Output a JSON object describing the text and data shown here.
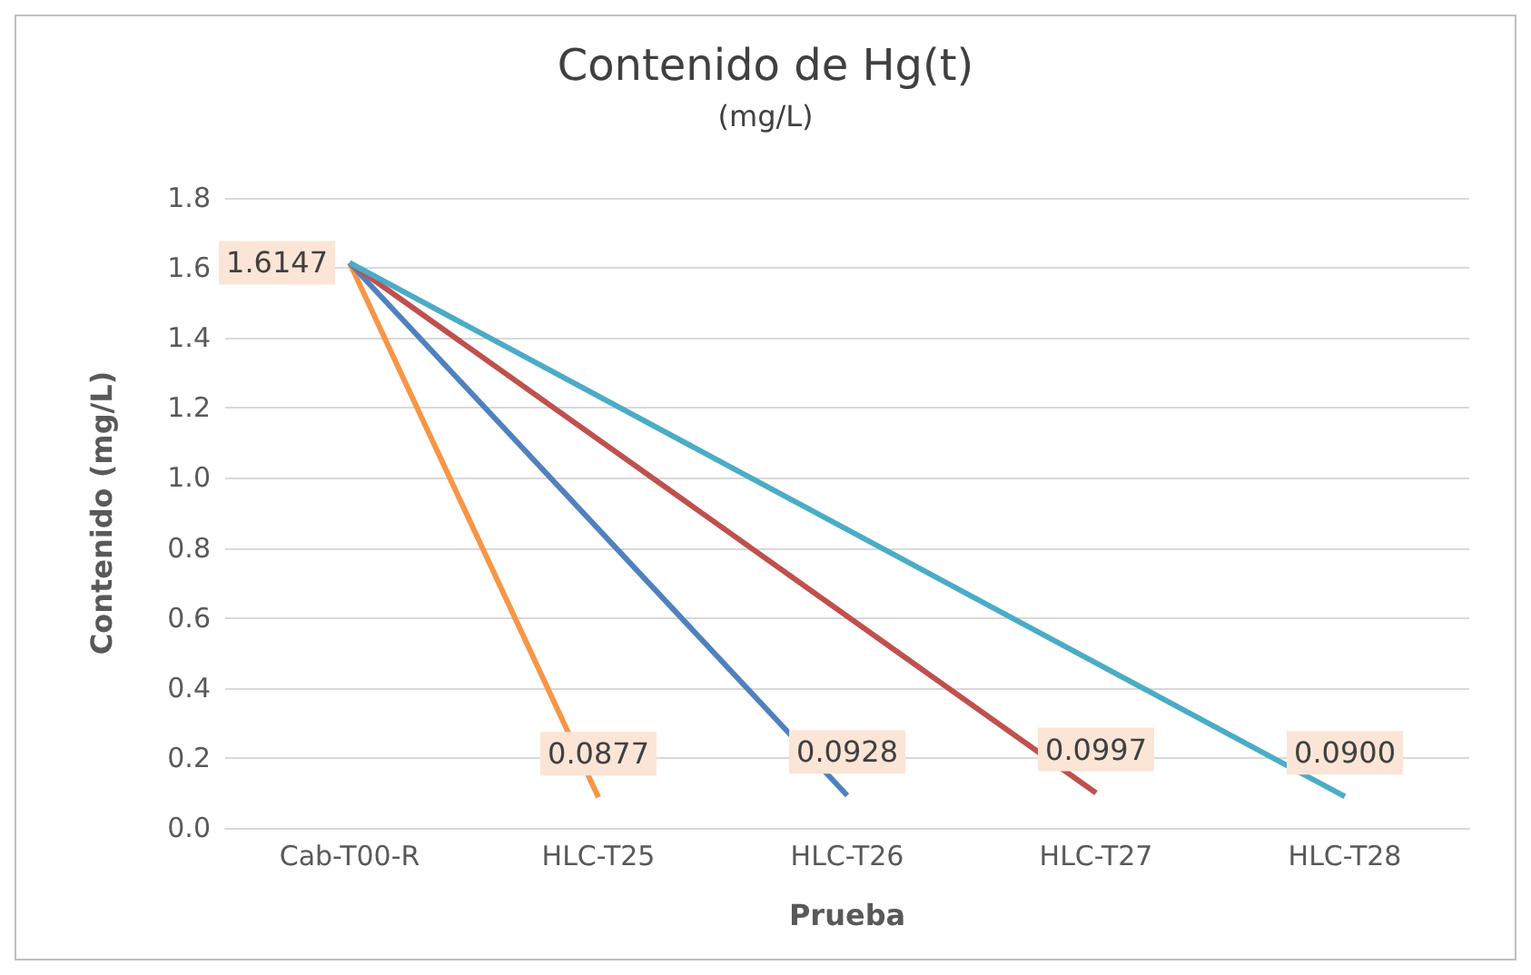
{
  "chart_data": {
    "type": "line",
    "title": "Contenido de Hg(t)",
    "subtitle": "(mg/L)",
    "xlabel": "Prueba",
    "ylabel": "Contenido (mg/L)",
    "categories": [
      "Cab-T00-R",
      "HLC-T25",
      "HLC-T26",
      "HLC-T27",
      "HLC-T28"
    ],
    "series": [
      {
        "color": "#f79646",
        "values": [
          1.6147,
          0.0877,
          null,
          null,
          null
        ],
        "value_labels": [
          "1.6147",
          "0.0877",
          null,
          null,
          null
        ]
      },
      {
        "color": "#4f81bd",
        "values": [
          1.6147,
          null,
          0.0928,
          null,
          null
        ],
        "value_labels": [
          null,
          null,
          "0.0928",
          null,
          null
        ]
      },
      {
        "color": "#c0504d",
        "values": [
          1.6147,
          null,
          null,
          0.0997,
          null
        ],
        "value_labels": [
          null,
          null,
          null,
          "0.0997",
          null
        ]
      },
      {
        "color": "#4bacc6",
        "values": [
          1.6147,
          null,
          null,
          null,
          0.09
        ],
        "value_labels": [
          null,
          null,
          null,
          null,
          "0.0900"
        ]
      }
    ],
    "ylim": [
      0,
      1.8
    ],
    "yticks": [
      {
        "value": 0,
        "label": "0.0"
      },
      {
        "value": 0.2,
        "label": "0.2"
      },
      {
        "value": 0.4,
        "label": "0.4"
      },
      {
        "value": 0.6,
        "label": "0.6"
      },
      {
        "value": 0.8,
        "label": "0.8"
      },
      {
        "value": 1,
        "label": "1.0"
      },
      {
        "value": 1.2,
        "label": "1.2"
      },
      {
        "value": 1.4,
        "label": "1.4"
      },
      {
        "value": 1.6,
        "label": "1.6"
      },
      {
        "value": 1.8,
        "label": "1.8"
      }
    ],
    "grid": "y",
    "marker": "none",
    "line_style": "solid"
  }
}
